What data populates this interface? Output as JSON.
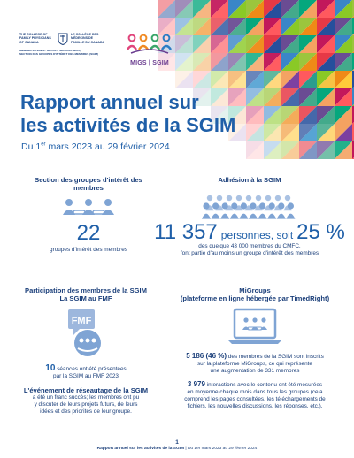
{
  "cfpc": {
    "name_en": "THE COLLEGE OF FAMILY PHYSICIANS OF CANADA",
    "name_fr": "LE COLLÈGE DES MÉDECINS DE FAMILLE DU CANADA",
    "section_en": "MEMBER INTEREST GROUPS SECTION (MIGS)",
    "section_fr": "SECTION DES GROUPES D'INTÉRÊT DES MEMBRES (SGIM)"
  },
  "migs_logo": {
    "label": "MIGS | SGIM"
  },
  "title": {
    "line1": "Rapport annuel sur",
    "line2": "les activités de la SGIM"
  },
  "dates": {
    "pre": "Du 1",
    "sup": "er",
    "post": " mars 2023 au 29 février 2024"
  },
  "section_groups": {
    "heading": "Section des groupes d'intérêt des membres",
    "number": "22",
    "caption": "groupes d'intérêt des membres"
  },
  "membership": {
    "heading": "Adhésion à la SGIM",
    "count": "11 357",
    "middle": "personnes, soit",
    "percent": "25 %",
    "caption_line1": "des quelque 43 000 membres du CMFC,",
    "caption_line2": "font partie d'au moins un groupe d'intérêt des membres"
  },
  "fmf": {
    "heading_line1": "Participation des membres de la SGIM",
    "heading_line2": "La SGIM au FMF",
    "badge": "FMF",
    "count": "10",
    "count_text": "séances ont été présentées",
    "count_line2": "par la SGIM au FMF 2023",
    "event_heading": "L'événement de réseautage de la SGIM",
    "event_line1": "a été un franc succès; les membres ont pu",
    "event_line2": "y discuter de leurs projets futurs, de leurs",
    "event_line3": "idées et des priorités de leur groupe."
  },
  "migroups": {
    "heading_line1": "MiGroups",
    "heading_line2": "(plateforme en ligne hébergée par TimedRight)",
    "stat1_bold": "5 186 (46 %)",
    "stat1_line1": " des membres de la SGIM sont inscrits",
    "stat1_line2": "sur la plateforme MiGroups, ce qui représente",
    "stat1_line3": "une augmentation de 331 membres",
    "stat2_bold": "3 979",
    "stat2_line1": " interactions avec le contenu ont été mesurées",
    "stat2_line2": "en moyenne chaque mois dans tous les groupes (cela",
    "stat2_line3": "comprend les pages consultées, les téléchargements de",
    "stat2_line4": "fichiers, les nouvelles discussions, les réponses, etc.)."
  },
  "footer": {
    "page": "1",
    "left": "Rapport annuel sur les activités de la SGIM",
    "right": " | Du 1er mars 2023 au 29 février 2024"
  },
  "colors": {
    "title_blue": "#1f5fa8",
    "navy": "#1b3f7a",
    "icon_blue": "#7fa4d4",
    "migs_purple": "#6a3d8f"
  },
  "icons": [
    "mosaic-banner",
    "cfpc-crest-icon",
    "migs-people-icon",
    "people-link-icon",
    "crowd-icon",
    "fmf-chat-icon",
    "laptop-icon"
  ]
}
